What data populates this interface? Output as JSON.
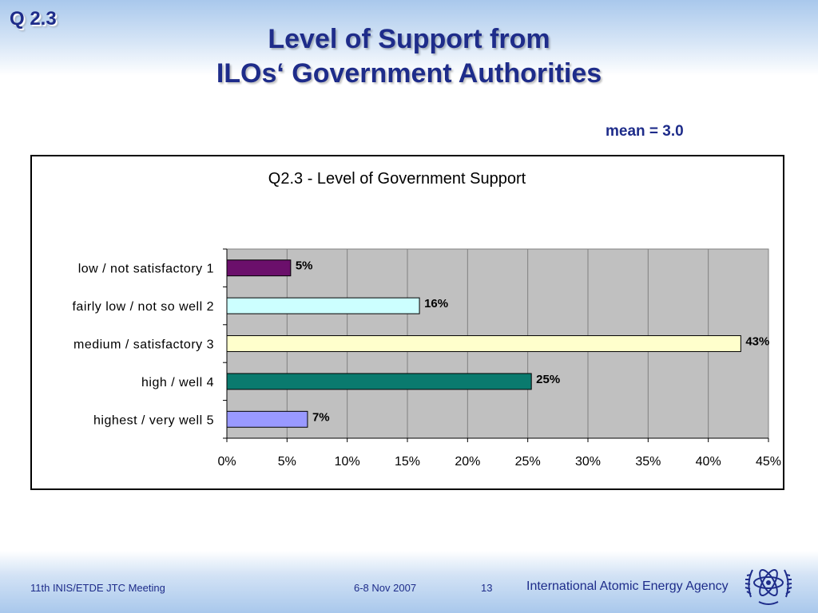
{
  "slide": {
    "question_label": "Q 2.3",
    "title_line1": "Level of Support from",
    "title_line2": "ILOs‘ Government Authorities",
    "mean_text": "mean = 3.0"
  },
  "footer": {
    "meeting": "11th INIS/ETDE JTC Meeting",
    "date": "6-8 Nov 2007",
    "page": "13",
    "agency": "International Atomic Energy Agency",
    "logo_icon": "iaea-atom-logo-icon"
  },
  "chart_data": {
    "type": "bar",
    "orientation": "horizontal",
    "title": "Q2.3 - Level of Government Support",
    "categories": [
      "low / not satisfactory 1",
      "fairly low / not so well 2",
      "medium / satisfactory 3",
      "high / well 4",
      "highest / very well 5"
    ],
    "values": [
      5.3,
      16,
      42.7,
      25.3,
      6.7
    ],
    "data_labels": [
      "5%",
      "16%",
      "43%",
      "25%",
      "7%"
    ],
    "colors": [
      "#6b0f6b",
      "#ccffff",
      "#ffffcc",
      "#0a7a6e",
      "#9999ff"
    ],
    "xlim": [
      0,
      45
    ],
    "xticks": [
      0,
      5,
      10,
      15,
      20,
      25,
      30,
      35,
      40,
      45
    ],
    "xtick_labels": [
      "0%",
      "5%",
      "10%",
      "15%",
      "20%",
      "25%",
      "30%",
      "35%",
      "40%",
      "45%"
    ],
    "plot_background": "#c0c0c0",
    "grid": true
  }
}
